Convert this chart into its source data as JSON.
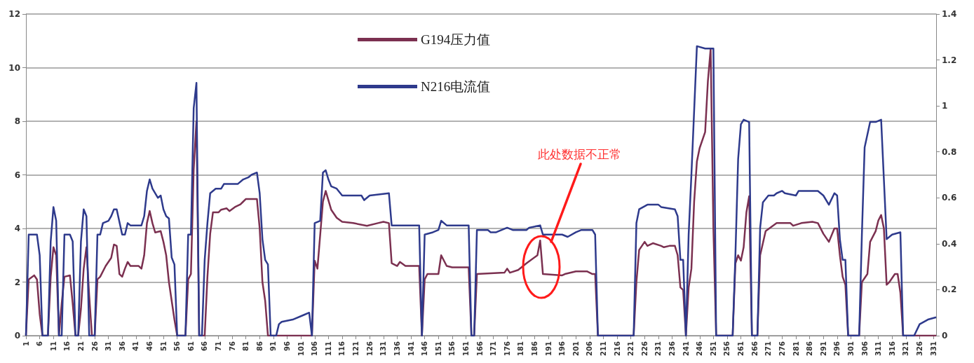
{
  "chart_data": {
    "type": "line",
    "xlim": [
      1,
      332
    ],
    "xticks": [
      1,
      6,
      11,
      16,
      21,
      26,
      31,
      36,
      41,
      46,
      51,
      56,
      61,
      66,
      71,
      76,
      81,
      86,
      91,
      96,
      101,
      106,
      111,
      116,
      121,
      126,
      131,
      136,
      141,
      146,
      151,
      156,
      161,
      166,
      171,
      176,
      181,
      186,
      191,
      196,
      201,
      206,
      211,
      216,
      221,
      226,
      231,
      236,
      241,
      246,
      251,
      256,
      261,
      266,
      271,
      276,
      281,
      286,
      291,
      296,
      301,
      306,
      311,
      316,
      321,
      326,
      331
    ],
    "ylim": [
      0,
      12
    ],
    "yticks": [
      0,
      2,
      4,
      6,
      8,
      10,
      12
    ],
    "y2lim": [
      0,
      1.4
    ],
    "y2ticks": [
      0,
      0.2,
      0.4,
      0.6,
      0.8,
      1,
      1.2,
      1.4
    ],
    "grid": "y",
    "legend": "top",
    "marker": "none",
    "series": [
      {
        "name": "G194压力值",
        "color": "#7b3050",
        "x": [
          1,
          2,
          4,
          5,
          6,
          7,
          9,
          10,
          11,
          12,
          13,
          14,
          15,
          17,
          18,
          19,
          20,
          21,
          22,
          23,
          24,
          25,
          26,
          27,
          28,
          30,
          32,
          33,
          34,
          35,
          36,
          37,
          38,
          39,
          42,
          43,
          44,
          45,
          46,
          47,
          48,
          50,
          51,
          52,
          53,
          54,
          55,
          56,
          59,
          60,
          61,
          62,
          63,
          64,
          66,
          67,
          68,
          69,
          71,
          72,
          74,
          75,
          77,
          79,
          80,
          81,
          85,
          86,
          87,
          88,
          89,
          105,
          106,
          107,
          109,
          110,
          112,
          114,
          116,
          120,
          125,
          129,
          131,
          133,
          134,
          136,
          137,
          139,
          144,
          145,
          146,
          147,
          151,
          152,
          154,
          156,
          162,
          163,
          164,
          165,
          175,
          176,
          177,
          180,
          183,
          187,
          188,
          189,
          196,
          197,
          201,
          205,
          207,
          208,
          209,
          222,
          223,
          224,
          226,
          227,
          229,
          232,
          233,
          235,
          237,
          238,
          239,
          240,
          241,
          242,
          243,
          244,
          245,
          246,
          248,
          249,
          250,
          251,
          252,
          258,
          259,
          260,
          261,
          262,
          263,
          264,
          265,
          267,
          268,
          270,
          272,
          274,
          279,
          280,
          283,
          287,
          289,
          291,
          293,
          295,
          296,
          297,
          298,
          299,
          300,
          304,
          305,
          307,
          308,
          310,
          311,
          312,
          313,
          314,
          315,
          317,
          318,
          319,
          320,
          332
        ],
        "values": [
          0,
          2.1,
          2.25,
          2.1,
          0.8,
          0,
          0,
          2.2,
          3.3,
          3.0,
          0,
          1.2,
          2.2,
          2.25,
          1.2,
          0,
          0,
          1.0,
          2.5,
          3.3,
          1.5,
          0,
          0,
          2.1,
          2.2,
          2.6,
          2.9,
          3.4,
          3.35,
          2.3,
          2.2,
          2.5,
          2.75,
          2.6,
          2.6,
          2.5,
          3.0,
          4.2,
          4.65,
          4.2,
          3.85,
          3.9,
          3.5,
          3.0,
          2.0,
          1.3,
          0.6,
          0,
          0,
          2.1,
          2.3,
          6.2,
          8.0,
          0,
          0,
          2.2,
          3.8,
          4.6,
          4.6,
          4.7,
          4.75,
          4.65,
          4.8,
          4.9,
          5.0,
          5.1,
          5.1,
          4.0,
          2.0,
          1.3,
          0,
          0,
          2.8,
          2.5,
          5.0,
          5.4,
          4.7,
          4.4,
          4.25,
          4.2,
          4.1,
          4.2,
          4.25,
          4.2,
          2.7,
          2.6,
          2.75,
          2.6,
          2.6,
          0,
          2.1,
          2.3,
          2.3,
          3.0,
          2.6,
          2.55,
          2.55,
          0,
          0,
          2.3,
          2.35,
          2.5,
          2.35,
          2.45,
          2.7,
          3.0,
          3.55,
          2.3,
          2.25,
          2.3,
          2.4,
          2.4,
          2.3,
          2.3,
          0,
          0,
          2.0,
          3.2,
          3.5,
          3.35,
          3.45,
          3.35,
          3.3,
          3.35,
          3.35,
          3.0,
          1.8,
          1.7,
          0,
          1.8,
          2.5,
          5.0,
          6.5,
          7.0,
          7.6,
          9.5,
          10.7,
          4.0,
          0,
          0,
          2.7,
          3.0,
          2.8,
          3.3,
          4.6,
          5.2,
          0,
          0,
          3.0,
          3.9,
          4.05,
          4.2,
          4.2,
          4.1,
          4.2,
          4.25,
          4.2,
          3.8,
          3.5,
          4.0,
          4.0,
          3.0,
          2.2,
          1.9,
          0,
          0,
          2.0,
          2.3,
          3.5,
          3.9,
          4.3,
          4.5,
          4.0,
          1.9,
          2.0,
          2.3,
          2.3,
          1.6,
          0,
          0
        ]
      },
      {
        "name": "N216电流值",
        "color": "#2e3a8c",
        "axis": "y2",
        "x": [
          1,
          2,
          5,
          6,
          7,
          9,
          10,
          11,
          12,
          13,
          14,
          15,
          17,
          18,
          19,
          20,
          21,
          22,
          23,
          24,
          26,
          27,
          28,
          29,
          31,
          32,
          33,
          34,
          36,
          37,
          38,
          39,
          41,
          43,
          44,
          45,
          46,
          47,
          49,
          50,
          51,
          52,
          53,
          54,
          55,
          56,
          59,
          60,
          61,
          62,
          63,
          64,
          65,
          66,
          67,
          68,
          70,
          72,
          73,
          78,
          80,
          82,
          83,
          85,
          86,
          87,
          88,
          89,
          90,
          92,
          93,
          94,
          98,
          102,
          104,
          105,
          106,
          108,
          109,
          110,
          111,
          112,
          114,
          116,
          123,
          124,
          126,
          133,
          134,
          144,
          145,
          146,
          149,
          151,
          152,
          154,
          162,
          163,
          164,
          165,
          169,
          170,
          172,
          176,
          178,
          183,
          184,
          188,
          189,
          196,
          198,
          201,
          203,
          207,
          208,
          209,
          222,
          223,
          224,
          227,
          231,
          232,
          237,
          238,
          239,
          240,
          241,
          242,
          243,
          245,
          248,
          250,
          251,
          252,
          258,
          259,
          260,
          261,
          262,
          264,
          265,
          267,
          268,
          269,
          271,
          273,
          274,
          276,
          277,
          281,
          282,
          289,
          291,
          293,
          295,
          296,
          297,
          298,
          299,
          300,
          304,
          305,
          306,
          308,
          310,
          312,
          313,
          314,
          316,
          319,
          320,
          324,
          326,
          329,
          332
        ],
        "values": [
          0,
          0.44,
          0.44,
          0.35,
          0,
          0,
          0.41,
          0.56,
          0.5,
          0,
          0,
          0.44,
          0.44,
          0.41,
          0,
          0,
          0.41,
          0.55,
          0.52,
          0,
          0,
          0.44,
          0.44,
          0.49,
          0.5,
          0.52,
          0.55,
          0.55,
          0.44,
          0.44,
          0.49,
          0.48,
          0.48,
          0.48,
          0.52,
          0.63,
          0.68,
          0.64,
          0.6,
          0.61,
          0.55,
          0.52,
          0.51,
          0.34,
          0.31,
          0,
          0,
          0.44,
          0.44,
          0.99,
          1.1,
          0,
          0,
          0.33,
          0.49,
          0.62,
          0.64,
          0.64,
          0.66,
          0.66,
          0.68,
          0.69,
          0.7,
          0.71,
          0.62,
          0.42,
          0.33,
          0.31,
          0,
          0,
          0.05,
          0.06,
          0.07,
          0.09,
          0.1,
          0,
          0.49,
          0.5,
          0.71,
          0.72,
          0.68,
          0.65,
          0.64,
          0.61,
          0.61,
          0.59,
          0.61,
          0.62,
          0.48,
          0.48,
          0,
          0.44,
          0.45,
          0.46,
          0.5,
          0.48,
          0.48,
          0,
          0,
          0.46,
          0.46,
          0.45,
          0.45,
          0.47,
          0.46,
          0.46,
          0.47,
          0.48,
          0.44,
          0.44,
          0.43,
          0.45,
          0.46,
          0.46,
          0.44,
          0,
          0,
          0.49,
          0.55,
          0.57,
          0.57,
          0.56,
          0.55,
          0.52,
          0.33,
          0.33,
          0,
          0.44,
          0.7,
          1.26,
          1.25,
          1.25,
          1.25,
          0,
          0,
          0.35,
          0.77,
          0.92,
          0.94,
          0.93,
          0,
          0,
          0.47,
          0.58,
          0.61,
          0.61,
          0.62,
          0.63,
          0.62,
          0.61,
          0.63,
          0.63,
          0.61,
          0.57,
          0.62,
          0.61,
          0.42,
          0.33,
          0.33,
          0,
          0,
          0.44,
          0.82,
          0.93,
          0.93,
          0.94,
          0.68,
          0.42,
          0.44,
          0.45,
          0,
          0,
          0.05,
          0.07,
          0.08
        ]
      }
    ],
    "annotations": [
      "此处数据不正常"
    ]
  }
}
